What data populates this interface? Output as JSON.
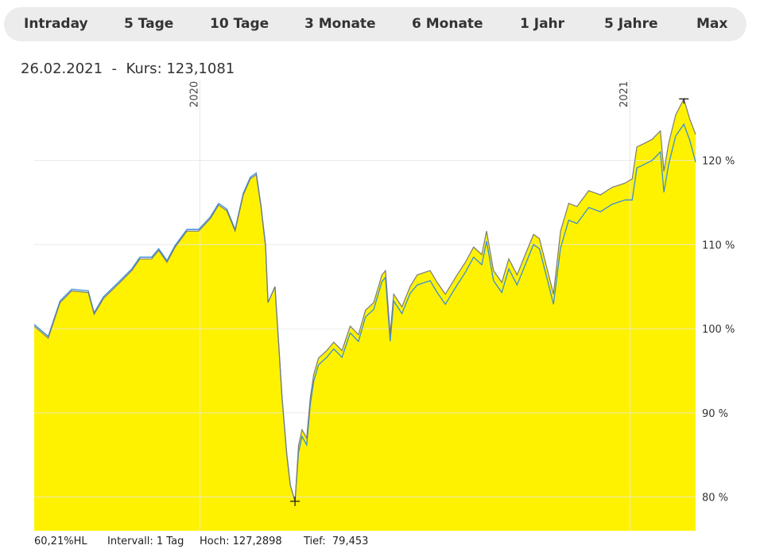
{
  "tabs": [
    "Intraday",
    "5 Tage",
    "10 Tage",
    "3 Monate",
    "6 Monate",
    "1 Jahr",
    "5 Jahre",
    "Max"
  ],
  "info": {
    "date": "26.02.2021",
    "separator": "-",
    "price_label": "Kurs: 123,1081"
  },
  "footer": {
    "range": "60,21%HL",
    "interval": "Intervall: 1 Tag",
    "high": "Hoch: 127,2898",
    "low": "Tief:  79,453"
  },
  "colors": {
    "area": "#fff200",
    "price_line": "#7a7a7a",
    "benchmark_line": "#3a8ed6",
    "grid": "#e6e6e6"
  },
  "chart_data": {
    "type": "area",
    "xlim": [
      "2019-08-13",
      "2021-02-26"
    ],
    "ylim": [
      76,
      129.6
    ],
    "y_ticks": [
      80,
      90,
      100,
      110,
      120
    ],
    "y_tick_labels": [
      "80 %",
      "90 %",
      "100 %",
      "110 %",
      "120 %"
    ],
    "x_ticks": [
      "2020-01-01",
      "2021-01-01"
    ],
    "x_tick_labels": [
      "2020",
      "2021"
    ],
    "grid": true,
    "x": [
      "2019-08-13",
      "2019-08-25",
      "2019-09-04",
      "2019-09-14",
      "2019-09-28",
      "2019-10-03",
      "2019-10-11",
      "2019-10-25",
      "2019-11-04",
      "2019-11-11",
      "2019-11-21",
      "2019-11-27",
      "2019-12-04",
      "2019-12-11",
      "2019-12-21",
      "2019-12-31",
      "2020-01-10",
      "2020-01-17",
      "2020-01-24",
      "2020-01-31",
      "2020-02-07",
      "2020-02-13",
      "2020-02-18",
      "2020-02-22",
      "2020-02-26",
      "2020-02-28",
      "2020-03-05",
      "2020-03-08",
      "2020-03-11",
      "2020-03-15",
      "2020-03-18",
      "2020-03-22",
      "2020-03-25",
      "2020-03-28",
      "2020-04-01",
      "2020-04-04",
      "2020-04-07",
      "2020-04-11",
      "2020-04-18",
      "2020-04-24",
      "2020-05-01",
      "2020-05-08",
      "2020-05-15",
      "2020-05-21",
      "2020-05-28",
      "2020-06-04",
      "2020-06-07",
      "2020-06-11",
      "2020-06-14",
      "2020-06-21",
      "2020-06-28",
      "2020-07-04",
      "2020-07-15",
      "2020-07-21",
      "2020-07-28",
      "2020-08-07",
      "2020-08-14",
      "2020-08-21",
      "2020-08-28",
      "2020-09-01",
      "2020-09-07",
      "2020-09-14",
      "2020-09-20",
      "2020-09-27",
      "2020-10-04",
      "2020-10-11",
      "2020-10-16",
      "2020-10-23",
      "2020-10-28",
      "2020-11-03",
      "2020-11-10",
      "2020-11-17",
      "2020-11-27",
      "2020-12-07",
      "2020-12-17",
      "2020-12-28",
      "2021-01-03",
      "2021-01-07",
      "2021-01-13",
      "2021-01-20",
      "2021-01-27",
      "2021-01-30",
      "2021-02-03",
      "2021-02-09",
      "2021-02-16",
      "2021-02-21",
      "2021-02-26"
    ],
    "series": [
      {
        "values": [
          100.3,
          98.9,
          103.1,
          104.5,
          104.3,
          101.7,
          103.6,
          105.5,
          106.9,
          108.3,
          108.3,
          109.3,
          107.9,
          109.7,
          111.6,
          111.6,
          113.1,
          114.7,
          114.0,
          111.6,
          115.9,
          117.8,
          118.3,
          114.5,
          109.7,
          103.1,
          105.0,
          98.4,
          91.8,
          85.1,
          81.4,
          79.5,
          86.1,
          88.0,
          87.0,
          91.8,
          94.6,
          96.5,
          97.4,
          98.4,
          97.4,
          100.3,
          99.3,
          102.2,
          103.1,
          106.4,
          106.9,
          99.3,
          104.1,
          102.6,
          105.0,
          106.4,
          106.9,
          105.5,
          104.1,
          106.4,
          107.9,
          109.7,
          108.8,
          111.6,
          106.9,
          105.5,
          108.3,
          106.4,
          108.8,
          111.2,
          110.7,
          106.9,
          104.1,
          111.6,
          114.9,
          114.5,
          116.4,
          115.9,
          116.8,
          117.3,
          117.8,
          121.6,
          122.0,
          122.5,
          123.5,
          118.7,
          122.0,
          125.4,
          127.3,
          124.9,
          123.1
        ]
      },
      {
        "values": [
          100.5,
          99.1,
          103.3,
          104.7,
          104.5,
          101.9,
          103.8,
          105.7,
          107.1,
          108.5,
          108.5,
          109.5,
          108.1,
          109.9,
          111.8,
          111.8,
          113.3,
          114.9,
          114.2,
          111.8,
          116.1,
          118.0,
          118.5,
          114.7,
          109.9,
          103.1,
          105.0,
          98.4,
          91.8,
          85.1,
          81.4,
          79.5,
          85.3,
          87.2,
          86.2,
          91.0,
          93.8,
          95.7,
          96.6,
          97.6,
          96.6,
          99.5,
          98.5,
          101.4,
          102.3,
          105.6,
          106.1,
          98.5,
          103.3,
          101.8,
          104.2,
          105.2,
          105.7,
          104.3,
          102.9,
          105.2,
          106.7,
          108.5,
          107.6,
          110.4,
          105.7,
          104.3,
          107.1,
          105.2,
          107.6,
          110.0,
          109.5,
          105.7,
          102.9,
          109.6,
          112.9,
          112.5,
          114.4,
          113.9,
          114.8,
          115.3,
          115.3,
          119.1,
          119.5,
          120.0,
          121.0,
          116.2,
          119.5,
          122.9,
          124.3,
          122.4,
          119.8
        ]
      }
    ]
  }
}
